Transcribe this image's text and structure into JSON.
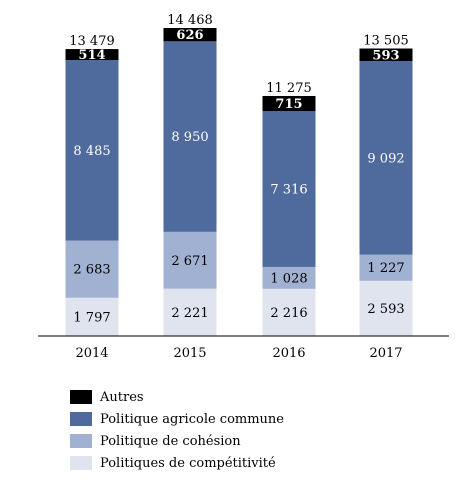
{
  "chart_data": {
    "type": "bar",
    "stacked": true,
    "categories": [
      "2014",
      "2015",
      "2016",
      "2017"
    ],
    "series": [
      {
        "name": "Politiques de compétitivité",
        "values": [
          1797,
          2221,
          2216,
          2593
        ],
        "labels": [
          "1 797",
          "2 221",
          "2 216",
          "2 593"
        ],
        "color": "#dfe4ef",
        "label_color": "#000000"
      },
      {
        "name": "Politique de cohésion",
        "values": [
          2683,
          2671,
          1028,
          1227
        ],
        "labels": [
          "2 683",
          "2 671",
          "1 028",
          "1 227"
        ],
        "color": "#a1b1d2",
        "label_color": "#000000"
      },
      {
        "name": "Politique agricole commune",
        "values": [
          8485,
          8950,
          7316,
          9092
        ],
        "labels": [
          "8 485",
          "8 950",
          "7 316",
          "9 092"
        ],
        "color": "#4f6b9d",
        "label_color": "#ffffff"
      },
      {
        "name": "Autres",
        "values": [
          514,
          626,
          715,
          593
        ],
        "labels": [
          "514",
          "626",
          "715",
          "593"
        ],
        "color": "#000000",
        "label_color": "#ffffff"
      }
    ],
    "totals": [
      13479,
      14468,
      11275,
      13505
    ],
    "total_labels": [
      "13 479",
      "14 468",
      "11 275",
      "13 505"
    ],
    "ylim": [
      0,
      15000
    ],
    "grid": false,
    "legend_position": "bottom-left"
  }
}
